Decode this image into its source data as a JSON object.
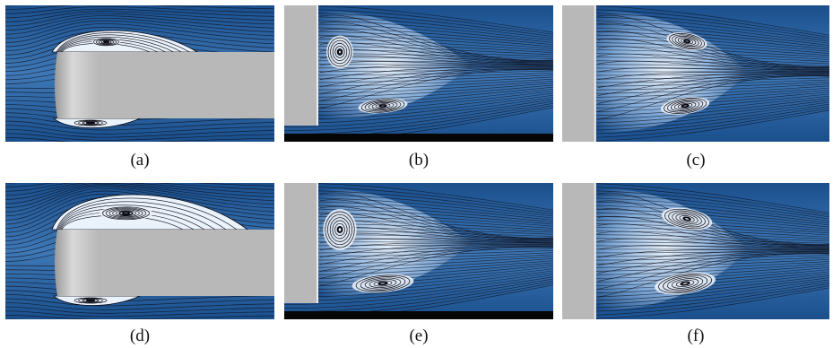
{
  "figure": {
    "panels": [
      {
        "label": "(a)",
        "view": "side-leading",
        "vortex": "small"
      },
      {
        "label": "(b)",
        "view": "wake-ground",
        "vortex": "medium"
      },
      {
        "label": "(c)",
        "view": "wake-free",
        "vortex": "medium"
      },
      {
        "label": "(d)",
        "view": "side-leading",
        "vortex": "large"
      },
      {
        "label": "(e)",
        "view": "wake-ground",
        "vortex": "large"
      },
      {
        "label": "(f)",
        "view": "wake-free",
        "vortex": "large"
      }
    ],
    "colors": {
      "flow_dark": "#1a4f8c",
      "flow_light": "#e6f0fa",
      "body": "#b8b8b8",
      "ground": "#050505",
      "streamline": "#0a0a14"
    }
  }
}
